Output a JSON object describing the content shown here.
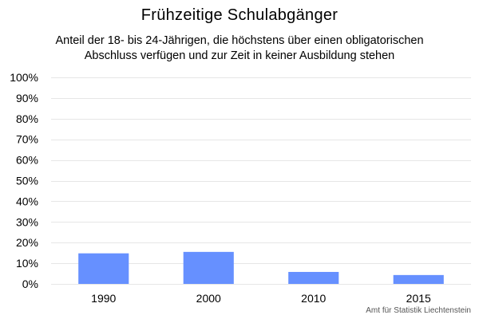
{
  "chart_data": {
    "type": "bar",
    "title": "Frühzeitige Schulabgänger",
    "subtitle_lines": [
      "Anteil der 18- bis 24-Jährigen, die höchstens über einen obligatorischen",
      "Abschluss verfügen und zur Zeit in keiner Ausbildung stehen"
    ],
    "categories": [
      "1990",
      "2000",
      "2010",
      "2015"
    ],
    "values": [
      14.8,
      15.5,
      5.8,
      4.3
    ],
    "ylim": [
      0,
      100
    ],
    "yticks": [
      0,
      10,
      20,
      30,
      40,
      50,
      60,
      70,
      80,
      90,
      100
    ],
    "ytick_labels": [
      "0%",
      "10%",
      "20%",
      "30%",
      "40%",
      "50%",
      "60%",
      "70%",
      "80%",
      "90%",
      "100%"
    ],
    "xlabel": "",
    "ylabel": "",
    "grid": true,
    "legend": "none",
    "bar_color": "#6690ff",
    "grid_color": "#e6e6e6",
    "source": "Amt für Statistik Liechtenstein"
  }
}
